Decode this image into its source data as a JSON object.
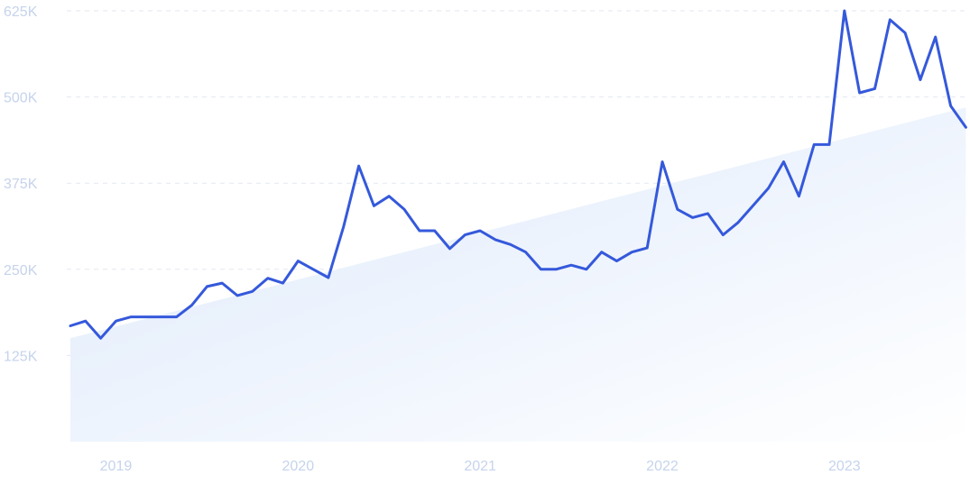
{
  "chart_data": {
    "type": "line",
    "title": "",
    "xlabel": "",
    "ylabel": "",
    "ylim": [
      0,
      625000
    ],
    "xlim": [
      "2018-10",
      "2023-09"
    ],
    "yticks": [
      {
        "value": 125000,
        "label": "125K"
      },
      {
        "value": 250000,
        "label": "250K"
      },
      {
        "value": 375000,
        "label": "375K"
      },
      {
        "value": 500000,
        "label": "500K"
      },
      {
        "value": 625000,
        "label": "625K"
      }
    ],
    "xticks": [
      {
        "value": "2019-01",
        "label": "2019"
      },
      {
        "value": "2020-01",
        "label": "2020"
      },
      {
        "value": "2021-01",
        "label": "2021"
      },
      {
        "value": "2022-01",
        "label": "2022"
      },
      {
        "value": "2023-01",
        "label": "2023"
      }
    ],
    "grid": true,
    "series": [
      {
        "name": "",
        "x": [
          "2018-10",
          "2018-11",
          "2018-12",
          "2019-01",
          "2019-02",
          "2019-03",
          "2019-04",
          "2019-05",
          "2019-06",
          "2019-07",
          "2019-08",
          "2019-09",
          "2019-10",
          "2019-11",
          "2019-12",
          "2020-01",
          "2020-02",
          "2020-03",
          "2020-04",
          "2020-05",
          "2020-06",
          "2020-07",
          "2020-08",
          "2020-09",
          "2020-10",
          "2020-11",
          "2020-12",
          "2021-01",
          "2021-02",
          "2021-03",
          "2021-04",
          "2021-05",
          "2021-06",
          "2021-07",
          "2021-08",
          "2021-09",
          "2021-10",
          "2021-11",
          "2021-12",
          "2022-01",
          "2022-02",
          "2022-03",
          "2022-04",
          "2022-05",
          "2022-06",
          "2022-07",
          "2022-08",
          "2022-09",
          "2022-10",
          "2022-11",
          "2022-12",
          "2023-01",
          "2023-02",
          "2023-03",
          "2023-04",
          "2023-05",
          "2023-06",
          "2023-07",
          "2023-08",
          "2023-09"
        ],
        "values": [
          168000,
          175000,
          150000,
          175000,
          181000,
          181000,
          181000,
          181000,
          198000,
          225000,
          230000,
          212000,
          218000,
          237000,
          230000,
          262000,
          250000,
          238000,
          312000,
          400000,
          342000,
          356000,
          337000,
          306000,
          306000,
          280000,
          300000,
          306000,
          293000,
          286000,
          275000,
          250000,
          250000,
          256000,
          250000,
          275000,
          262000,
          275000,
          281000,
          406000,
          337000,
          325000,
          331000,
          300000,
          318000,
          343000,
          368000,
          406000,
          356000,
          431000,
          431000,
          625000,
          506000,
          512000,
          612000,
          593000,
          525000,
          587000,
          487000,
          456000
        ]
      },
      {
        "name": "",
        "role": "trend",
        "x": [
          "2018-10",
          "2023-09"
        ],
        "values": [
          150000,
          485000
        ]
      }
    ],
    "colors": {
      "line": "#3559db",
      "grid": "#e3e7f0",
      "tick_text": "#c6d3ec",
      "area_start": "#dde9fb",
      "area_end": "#ffffff"
    }
  }
}
